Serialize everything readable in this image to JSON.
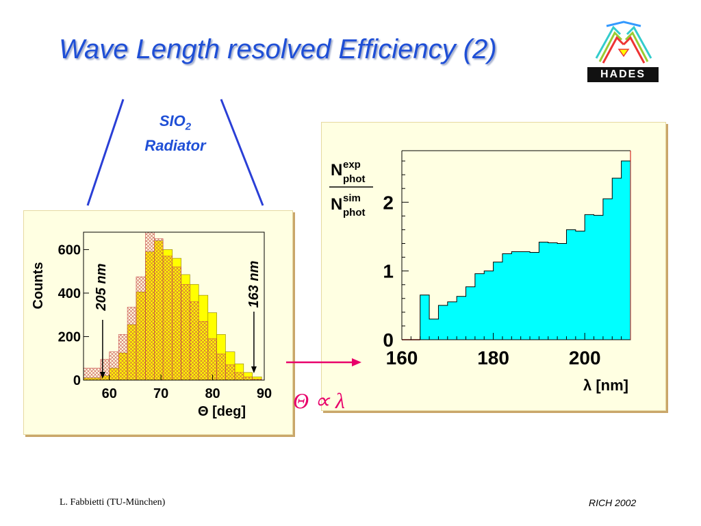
{
  "title": "Wave Length resolved Efficiency (2)",
  "logo_text": "HADES",
  "radiator": {
    "line1": "SIO",
    "sub": "2",
    "line2": "Radiator"
  },
  "relation": "Θ ∝ λ",
  "footer": {
    "left": "L. Fabbietti  (TU-München)",
    "right": "RICH 2002"
  },
  "colors": {
    "title": "#1f4fd6",
    "exp_fill": "#ffff00",
    "sim_fill": "#f3a6a6",
    "ratio_fill": "#00ffff",
    "arrow": "#e8006a"
  },
  "chart_data": [
    {
      "type": "bar",
      "title": "",
      "xlabel": "Θ [deg]",
      "ylabel": "Counts",
      "xlim": [
        55,
        90
      ],
      "ylim": [
        0,
        680
      ],
      "x_ticks": [
        "60",
        "70",
        "80",
        "90"
      ],
      "y_ticks": [
        "0",
        "200",
        "400",
        "600"
      ],
      "bin_edges": [
        55,
        58.3,
        60,
        61.8,
        63.5,
        65.2,
        67,
        68.7,
        70.4,
        72.2,
        73.9,
        75.6,
        77.3,
        79.1,
        80.8,
        82.5,
        84.3,
        86,
        87.7,
        89.5
      ],
      "series": [
        {
          "name": "",
          "values": [
            10,
            20,
            55,
            125,
            255,
            405,
            590,
            640,
            600,
            560,
            485,
            440,
            390,
            310,
            210,
            130,
            75,
            35,
            15
          ]
        },
        {
          "name": "",
          "values": [
            55,
            95,
            130,
            210,
            335,
            475,
            680,
            650,
            570,
            520,
            440,
            360,
            270,
            190,
            120,
            70,
            35,
            15,
            5
          ]
        }
      ],
      "annotations": [
        {
          "text": "205 nm",
          "x": 58.7
        },
        {
          "text": "163 nm",
          "x": 88
        }
      ]
    },
    {
      "type": "bar",
      "title": "",
      "xlabel": "λ [nm]",
      "ylabel": "N_phot^exp / N_phot^sim",
      "ylabel_parts": {
        "top": "N",
        "top_sup": "exp",
        "top_sub": "phot",
        "bot": "N",
        "bot_sup": "sim",
        "bot_sub": "phot"
      },
      "xlim": [
        160,
        210
      ],
      "ylim": [
        0,
        2.75
      ],
      "x_ticks": [
        "160",
        "180",
        "200"
      ],
      "y_ticks": [
        "0",
        "1",
        "2"
      ],
      "bin_edges": [
        164,
        166,
        168,
        170,
        172,
        174,
        176,
        178,
        180,
        182,
        184,
        186,
        188,
        190,
        192,
        194,
        196,
        198,
        200,
        202,
        204,
        206,
        208,
        210
      ],
      "values": [
        0.65,
        0.3,
        0.5,
        0.55,
        0.63,
        0.77,
        0.96,
        1.0,
        1.13,
        1.25,
        1.28,
        1.28,
        1.27,
        1.42,
        1.41,
        1.4,
        1.6,
        1.58,
        1.82,
        1.81,
        2.05,
        2.35,
        2.6
      ],
      "xlabel_unit": "[nm]"
    }
  ]
}
